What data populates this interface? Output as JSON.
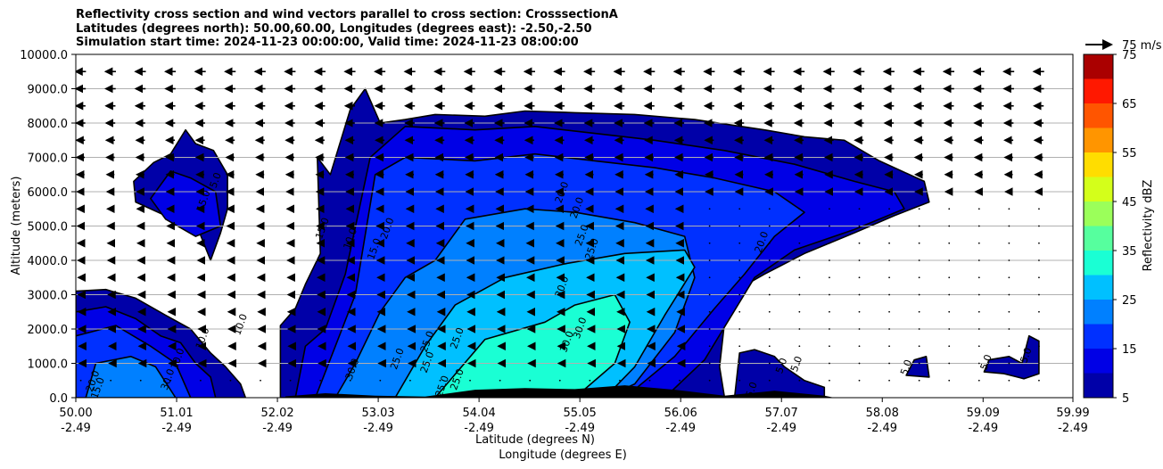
{
  "title_lines": [
    "Reflectivity cross section and wind vectors parallel to cross section: CrosssectionA",
    "Latitudes (degrees north): 50.00,60.00, Longitudes (degrees east): -2.50,-2.50",
    "Simulation start time: 2024-11-23 00:00:00, Valid time: 2024-11-23 08:00:00"
  ],
  "chart_data": {
    "type": "heatmap",
    "subtype": "filled-contour cross section with wind vectors",
    "x": {
      "label_line1": "Latitude (degrees N)",
      "label_line2": "Longitude (degrees E)",
      "lim": [
        50.0,
        59.99
      ],
      "ticks": [
        {
          "value": 50.0,
          "lat": "50.00",
          "lon": "-2.49"
        },
        {
          "value": 51.01,
          "lat": "51.01",
          "lon": "-2.49"
        },
        {
          "value": 52.02,
          "lat": "52.02",
          "lon": "-2.49"
        },
        {
          "value": 53.03,
          "lat": "53.03",
          "lon": "-2.49"
        },
        {
          "value": 54.04,
          "lat": "54.04",
          "lon": "-2.49"
        },
        {
          "value": 55.05,
          "lat": "55.05",
          "lon": "-2.49"
        },
        {
          "value": 56.06,
          "lat": "56.06",
          "lon": "-2.49"
        },
        {
          "value": 57.07,
          "lat": "57.07",
          "lon": "-2.49"
        },
        {
          "value": 58.08,
          "lat": "58.08",
          "lon": "-2.49"
        },
        {
          "value": 59.09,
          "lat": "59.09",
          "lon": "-2.49"
        },
        {
          "value": 59.99,
          "lat": "59.99",
          "lon": "-2.49"
        }
      ]
    },
    "y": {
      "label": "Altitude (meters)",
      "lim": [
        0,
        10000
      ],
      "ticks": [
        {
          "value": 0,
          "label": "0.0"
        },
        {
          "value": 1000,
          "label": "1000.0"
        },
        {
          "value": 2000,
          "label": "2000.0"
        },
        {
          "value": 3000,
          "label": "3000.0"
        },
        {
          "value": 4000,
          "label": "4000.0"
        },
        {
          "value": 5000,
          "label": "5000.0"
        },
        {
          "value": 6000,
          "label": "6000.0"
        },
        {
          "value": 7000,
          "label": "7000.0"
        },
        {
          "value": 8000,
          "label": "8000.0"
        },
        {
          "value": 9000,
          "label": "9000.0"
        },
        {
          "value": 10000,
          "label": "10000.0"
        }
      ],
      "grid": true
    },
    "colorbar": {
      "label": "Reflectivity dBZ",
      "levels": [
        5,
        10,
        15,
        20,
        25,
        30,
        35,
        40,
        45,
        50,
        55,
        60,
        65,
        70,
        75
      ],
      "tick_labels": [
        "5",
        "15",
        "25",
        "35",
        "45",
        "55",
        "65",
        "75"
      ],
      "colors": [
        "#0000a8",
        "#0000e6",
        "#0030ff",
        "#0080ff",
        "#00c0ff",
        "#1affd4",
        "#56ff9e",
        "#9bff5a",
        "#d4ff1a",
        "#ffdd00",
        "#ff9500",
        "#ff5500",
        "#ff1800",
        "#aa0000"
      ]
    },
    "quiver_key": {
      "label": "75 m/s",
      "speed": 75
    },
    "contour_labels_visible": [
      "5.0",
      "10.0",
      "15.0",
      "20.0",
      "25.0",
      "30.0"
    ],
    "field_regions": [
      {
        "dbz_min": 5,
        "points": [
          [
            50.0,
            0
          ],
          [
            50.0,
            3100
          ],
          [
            50.3,
            3150
          ],
          [
            50.6,
            2900
          ],
          [
            50.9,
            2400
          ],
          [
            51.15,
            2000
          ],
          [
            51.35,
            1300
          ],
          [
            51.5,
            900
          ],
          [
            51.65,
            400
          ],
          [
            51.7,
            0
          ]
        ]
      },
      {
        "dbz_min": 5,
        "points": [
          [
            52.05,
            0
          ],
          [
            52.05,
            2100
          ],
          [
            52.2,
            2600
          ],
          [
            52.3,
            3300
          ],
          [
            52.45,
            4200
          ],
          [
            52.42,
            7000
          ],
          [
            52.55,
            6500
          ],
          [
            52.75,
            8400
          ],
          [
            52.9,
            9000
          ],
          [
            53.05,
            8000
          ],
          [
            53.3,
            8100
          ],
          [
            53.6,
            8250
          ],
          [
            54.1,
            8200
          ],
          [
            54.5,
            8350
          ],
          [
            55.0,
            8300
          ],
          [
            55.6,
            8250
          ],
          [
            56.2,
            8100
          ],
          [
            56.9,
            7800
          ],
          [
            57.3,
            7600
          ],
          [
            57.7,
            7500
          ],
          [
            58.05,
            6900
          ],
          [
            58.5,
            6300
          ],
          [
            58.55,
            5700
          ],
          [
            58.2,
            5300
          ],
          [
            57.8,
            4800
          ],
          [
            57.3,
            4200
          ],
          [
            56.9,
            3600
          ],
          [
            56.6,
            3100
          ],
          [
            56.5,
            2200
          ],
          [
            56.45,
            900
          ],
          [
            56.5,
            0
          ]
        ]
      },
      {
        "dbz_min": 5,
        "points": [
          [
            50.58,
            6300
          ],
          [
            50.78,
            6850
          ],
          [
            50.95,
            7100
          ],
          [
            51.1,
            7800
          ],
          [
            51.2,
            7400
          ],
          [
            51.38,
            7200
          ],
          [
            51.52,
            6500
          ],
          [
            51.52,
            5500
          ],
          [
            51.45,
            4800
          ],
          [
            51.35,
            4000
          ],
          [
            51.2,
            5100
          ],
          [
            50.9,
            5300
          ],
          [
            50.6,
            5700
          ]
        ]
      },
      {
        "dbz_min": 5,
        "points": [
          [
            56.6,
            0
          ],
          [
            56.65,
            1300
          ],
          [
            56.8,
            1400
          ],
          [
            57.0,
            1200
          ],
          [
            57.1,
            900
          ],
          [
            57.3,
            500
          ],
          [
            57.5,
            300
          ],
          [
            57.5,
            0
          ]
        ]
      },
      {
        "dbz_min": 5,
        "points": [
          [
            58.32,
            650
          ],
          [
            58.4,
            1100
          ],
          [
            58.52,
            1200
          ],
          [
            58.55,
            600
          ]
        ]
      },
      {
        "dbz_min": 5,
        "points": [
          [
            59.1,
            750
          ],
          [
            59.15,
            1100
          ],
          [
            59.35,
            1200
          ],
          [
            59.48,
            1000
          ],
          [
            59.55,
            1800
          ],
          [
            59.65,
            1650
          ],
          [
            59.65,
            700
          ],
          [
            59.5,
            550
          ],
          [
            59.3,
            700
          ]
        ]
      },
      {
        "dbz_min": 10,
        "points": [
          [
            50.0,
            0
          ],
          [
            50.0,
            2500
          ],
          [
            50.3,
            2650
          ],
          [
            50.6,
            2300
          ],
          [
            50.85,
            1800
          ],
          [
            51.05,
            1600
          ],
          [
            51.2,
            1000
          ],
          [
            51.35,
            600
          ],
          [
            51.4,
            0
          ]
        ]
      },
      {
        "dbz_min": 10,
        "points": [
          [
            52.2,
            0
          ],
          [
            52.3,
            1500
          ],
          [
            52.5,
            2000
          ],
          [
            52.7,
            3600
          ],
          [
            52.95,
            7000
          ],
          [
            53.3,
            7900
          ],
          [
            54.0,
            7800
          ],
          [
            54.6,
            7900
          ],
          [
            55.2,
            7700
          ],
          [
            55.8,
            7500
          ],
          [
            56.5,
            7200
          ],
          [
            57.2,
            6800
          ],
          [
            57.8,
            6300
          ],
          [
            58.2,
            6000
          ],
          [
            58.3,
            5500
          ],
          [
            57.8,
            4900
          ],
          [
            57.2,
            4300
          ],
          [
            56.8,
            3500
          ],
          [
            56.55,
            2300
          ],
          [
            56.3,
            1100
          ],
          [
            55.9,
            0
          ]
        ]
      },
      {
        "dbz_min": 10,
        "points": [
          [
            50.75,
            5800
          ],
          [
            50.95,
            6600
          ],
          [
            51.15,
            6400
          ],
          [
            51.4,
            6000
          ],
          [
            51.45,
            5000
          ],
          [
            51.2,
            4700
          ],
          [
            50.9,
            5200
          ]
        ]
      },
      {
        "dbz_min": 15,
        "points": [
          [
            50.0,
            0
          ],
          [
            50.0,
            1800
          ],
          [
            50.4,
            2100
          ],
          [
            50.75,
            1500
          ],
          [
            51.0,
            1000
          ],
          [
            51.15,
            0
          ]
        ]
      },
      {
        "dbz_min": 15,
        "points": [
          [
            52.4,
            0
          ],
          [
            52.6,
            1500
          ],
          [
            52.8,
            3000
          ],
          [
            53.0,
            6500
          ],
          [
            53.3,
            7000
          ],
          [
            54.0,
            6900
          ],
          [
            54.6,
            7100
          ],
          [
            55.2,
            6900
          ],
          [
            55.8,
            6700
          ],
          [
            56.4,
            6400
          ],
          [
            57.0,
            6000
          ],
          [
            57.3,
            5400
          ],
          [
            57.0,
            4700
          ],
          [
            56.7,
            3600
          ],
          [
            56.4,
            2600
          ],
          [
            56.0,
            1200
          ],
          [
            55.5,
            0
          ]
        ]
      },
      {
        "dbz_min": 20,
        "points": [
          [
            50.1,
            0
          ],
          [
            50.2,
            1000
          ],
          [
            50.55,
            1200
          ],
          [
            50.8,
            900
          ],
          [
            51.0,
            0
          ]
        ]
      },
      {
        "dbz_min": 20,
        "points": [
          [
            52.6,
            0
          ],
          [
            52.8,
            1000
          ],
          [
            53.05,
            2500
          ],
          [
            53.3,
            3500
          ],
          [
            53.6,
            4000
          ],
          [
            53.9,
            5200
          ],
          [
            54.5,
            5500
          ],
          [
            55.0,
            5400
          ],
          [
            55.6,
            5100
          ],
          [
            56.1,
            4700
          ],
          [
            56.2,
            3500
          ],
          [
            56.0,
            1900
          ],
          [
            55.6,
            400
          ],
          [
            55.3,
            0
          ]
        ]
      },
      {
        "dbz_min": 25,
        "points": [
          [
            53.2,
            0
          ],
          [
            53.5,
            1500
          ],
          [
            53.8,
            2700
          ],
          [
            54.3,
            3500
          ],
          [
            54.9,
            3900
          ],
          [
            55.5,
            4200
          ],
          [
            56.1,
            4300
          ],
          [
            56.2,
            3800
          ],
          [
            55.9,
            2400
          ],
          [
            55.6,
            900
          ],
          [
            55.3,
            0
          ]
        ]
      },
      {
        "dbz_min": 30,
        "points": [
          [
            53.6,
            0
          ],
          [
            54.1,
            1700
          ],
          [
            54.7,
            2200
          ],
          [
            55.0,
            2700
          ],
          [
            55.4,
            3000
          ],
          [
            55.55,
            2200
          ],
          [
            55.4,
            1000
          ],
          [
            55.0,
            0
          ]
        ]
      }
    ],
    "terrain_points": [
      [
        52.1,
        0
      ],
      [
        52.1,
        40
      ],
      [
        52.5,
        130
      ],
      [
        53.0,
        60
      ],
      [
        53.5,
        30
      ],
      [
        54.0,
        230
      ],
      [
        54.5,
        280
      ],
      [
        55.0,
        250
      ],
      [
        55.5,
        360
      ],
      [
        56.0,
        230
      ],
      [
        56.5,
        60
      ],
      [
        57.0,
        200
      ],
      [
        57.5,
        60
      ],
      [
        57.6,
        0
      ]
    ],
    "contour_labels": [
      {
        "x": 51.43,
        "y": 6300,
        "text": "5.0"
      },
      {
        "x": 51.31,
        "y": 5700,
        "text": "15.0"
      },
      {
        "x": 52.5,
        "y": 4900,
        "text": "15.0"
      },
      {
        "x": 52.78,
        "y": 4600,
        "text": "10.0"
      },
      {
        "x": 53.15,
        "y": 4900,
        "text": "20.0"
      },
      {
        "x": 53.02,
        "y": 4300,
        "text": "15.0"
      },
      {
        "x": 54.9,
        "y": 5950,
        "text": "20.0"
      },
      {
        "x": 55.05,
        "y": 5500,
        "text": "20.0"
      },
      {
        "x": 55.1,
        "y": 4700,
        "text": "25.0"
      },
      {
        "x": 55.2,
        "y": 4300,
        "text": "25.0"
      },
      {
        "x": 56.9,
        "y": 4500,
        "text": "20.0"
      },
      {
        "x": 54.9,
        "y": 3200,
        "text": "30.0"
      },
      {
        "x": 55.08,
        "y": 2000,
        "text": "30.0"
      },
      {
        "x": 54.95,
        "y": 1600,
        "text": "30.0"
      },
      {
        "x": 53.55,
        "y": 1600,
        "text": "25.0"
      },
      {
        "x": 53.85,
        "y": 1700,
        "text": "25.0"
      },
      {
        "x": 53.55,
        "y": 1000,
        "text": "25.0"
      },
      {
        "x": 53.25,
        "y": 1100,
        "text": "25.0"
      },
      {
        "x": 52.8,
        "y": 800,
        "text": "30.0"
      },
      {
        "x": 53.85,
        "y": 500,
        "text": "25.0"
      },
      {
        "x": 53.7,
        "y": 300,
        "text": "25.0"
      },
      {
        "x": 51.3,
        "y": 1700,
        "text": "10.0"
      },
      {
        "x": 51.68,
        "y": 2100,
        "text": "10.0"
      },
      {
        "x": 51.05,
        "y": 1100,
        "text": "10.0"
      },
      {
        "x": 50.95,
        "y": 500,
        "text": "30.0"
      },
      {
        "x": 50.2,
        "y": 450,
        "text": "20.0"
      },
      {
        "x": 50.25,
        "y": 250,
        "text": "15.0"
      },
      {
        "x": 57.1,
        "y": 900,
        "text": "5.0"
      },
      {
        "x": 57.25,
        "y": 950,
        "text": "5.0"
      },
      {
        "x": 56.8,
        "y": 200,
        "text": "5.0"
      },
      {
        "x": 58.35,
        "y": 850,
        "text": "5.0"
      },
      {
        "x": 59.15,
        "y": 1000,
        "text": "5.0"
      },
      {
        "x": 59.55,
        "y": 1200,
        "text": "5.0"
      }
    ],
    "wind_vectors": {
      "x_start": 50.05,
      "x_step": 0.3,
      "count": 33,
      "levels": [
        9500,
        9000,
        8500,
        8000,
        7500,
        7000,
        6500,
        6000,
        5500,
        5000,
        4500,
        4000,
        3500,
        3000,
        2500,
        2000,
        1500,
        1000,
        500
      ],
      "direction": "southward (toward decreasing latitude)",
      "speed_by_level": [
        {
          "z": 9500,
          "speed": 30
        },
        {
          "z": 8000,
          "speed": 26
        },
        {
          "z": 6000,
          "speed": 20
        },
        {
          "z": 4000,
          "speed": 15
        },
        {
          "z": 2000,
          "speed": 10
        },
        {
          "z": 500,
          "speed": 6
        }
      ]
    }
  }
}
